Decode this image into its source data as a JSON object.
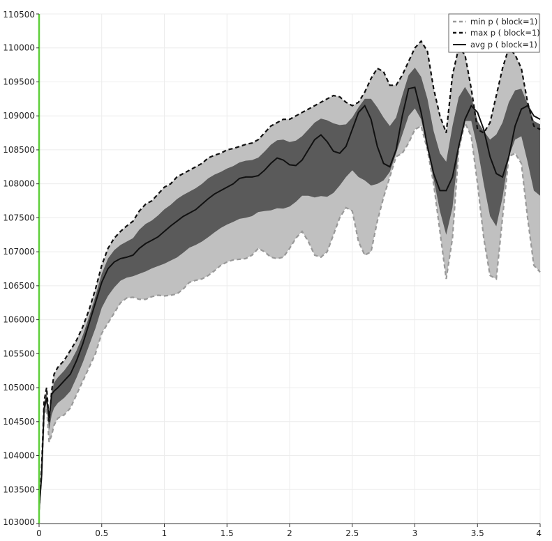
{
  "chart_data": {
    "type": "line",
    "title": "",
    "xlabel": "",
    "ylabel": "",
    "xlim": [
      0,
      4
    ],
    "ylim": [
      103000,
      110500
    ],
    "x_ticks": [
      0,
      0.5,
      1,
      1.5,
      2,
      2.5,
      3,
      3.5,
      4
    ],
    "x_tick_labels": [
      "0",
      "0.5",
      "1",
      "1.5",
      "2",
      "2.5",
      "3",
      "3.5",
      "4"
    ],
    "y_ticks": [
      103000,
      103500,
      104000,
      104500,
      105000,
      105500,
      106000,
      106500,
      107000,
      107500,
      108000,
      108500,
      109000,
      109500,
      110000,
      110500
    ],
    "y_tick_labels": [
      "103000",
      "103500",
      "104000",
      "104500",
      "105000",
      "105500",
      "106000",
      "106500",
      "107000",
      "107500",
      "108000",
      "108500",
      "109000",
      "109500",
      "110000",
      "110500"
    ],
    "grid": true,
    "legend_position": "top-right",
    "colors": {
      "min": "#999999",
      "max": "#111111",
      "avg": "#111111",
      "outer_band": "#c0c0c0",
      "inner_band": "#5a5a5a",
      "axis_marker": "#5fcf3a",
      "grid": "#ececec"
    },
    "x": [
      0,
      0.02,
      0.04,
      0.06,
      0.08,
      0.1,
      0.12,
      0.15,
      0.2,
      0.25,
      0.3,
      0.35,
      0.4,
      0.45,
      0.5,
      0.55,
      0.6,
      0.65,
      0.7,
      0.75,
      0.8,
      0.85,
      0.9,
      0.95,
      1.0,
      1.05,
      1.1,
      1.15,
      1.2,
      1.25,
      1.3,
      1.35,
      1.4,
      1.45,
      1.5,
      1.55,
      1.6,
      1.65,
      1.7,
      1.75,
      1.8,
      1.85,
      1.9,
      1.95,
      2.0,
      2.05,
      2.1,
      2.15,
      2.2,
      2.25,
      2.3,
      2.35,
      2.4,
      2.45,
      2.5,
      2.55,
      2.6,
      2.65,
      2.7,
      2.75,
      2.8,
      2.85,
      2.9,
      2.95,
      3.0,
      3.05,
      3.1,
      3.15,
      3.2,
      3.25,
      3.3,
      3.35,
      3.4,
      3.45,
      3.5,
      3.55,
      3.6,
      3.65,
      3.7,
      3.75,
      3.8,
      3.85,
      3.9,
      3.95,
      4.0
    ],
    "series": [
      {
        "name": "min p ( block=1)",
        "style": "dashed",
        "values": [
          103200,
          103700,
          104600,
          104700,
          104200,
          104300,
          104450,
          104550,
          104600,
          104700,
          104900,
          105100,
          105300,
          105500,
          105800,
          105950,
          106100,
          106250,
          106320,
          106330,
          106300,
          106300,
          106340,
          106360,
          106350,
          106360,
          106380,
          106450,
          106550,
          106580,
          106600,
          106650,
          106720,
          106800,
          106850,
          106880,
          106890,
          106900,
          106950,
          107050,
          107000,
          106920,
          106900,
          106920,
          107050,
          107200,
          107300,
          107150,
          106950,
          106920,
          107000,
          107250,
          107500,
          107650,
          107600,
          107150,
          106950,
          107000,
          107450,
          107800,
          108100,
          108400,
          108450,
          108600,
          108800,
          108850,
          108500,
          108000,
          107300,
          106600,
          107200,
          108500,
          108900,
          108700,
          108000,
          107200,
          106650,
          106600,
          107500,
          108400,
          108450,
          108300,
          107500,
          106800,
          106700
        ]
      },
      {
        "name": "max p ( block=1)",
        "style": "dashed",
        "values": [
          103200,
          103800,
          104800,
          105000,
          104500,
          104950,
          105200,
          105300,
          105400,
          105550,
          105700,
          105900,
          106150,
          106450,
          106800,
          107050,
          107200,
          107300,
          107380,
          107450,
          107600,
          107700,
          107750,
          107850,
          107950,
          108000,
          108100,
          108150,
          108200,
          108250,
          108300,
          108380,
          108420,
          108450,
          108500,
          108520,
          108550,
          108580,
          108600,
          108650,
          108750,
          108850,
          108900,
          108950,
          108950,
          109000,
          109050,
          109100,
          109150,
          109200,
          109250,
          109300,
          109280,
          109200,
          109150,
          109200,
          109350,
          109550,
          109700,
          109650,
          109450,
          109450,
          109600,
          109800,
          110000,
          110100,
          109950,
          109400,
          109000,
          108750,
          109600,
          110000,
          109900,
          109400,
          108800,
          108750,
          108900,
          109300,
          109700,
          110000,
          109900,
          109700,
          109200,
          108850,
          108800
        ]
      },
      {
        "name": "avg p ( block=1)",
        "style": "solid",
        "values": [
          103200,
          103700,
          104700,
          104850,
          104550,
          104900,
          104950,
          105000,
          105100,
          105200,
          105400,
          105650,
          105950,
          106250,
          106550,
          106750,
          106850,
          106900,
          106920,
          106950,
          107050,
          107120,
          107170,
          107220,
          107300,
          107380,
          107450,
          107520,
          107570,
          107620,
          107700,
          107780,
          107850,
          107900,
          107950,
          108000,
          108080,
          108100,
          108100,
          108120,
          108200,
          108300,
          108380,
          108350,
          108280,
          108270,
          108350,
          108500,
          108650,
          108720,
          108620,
          108480,
          108450,
          108550,
          108800,
          109050,
          109150,
          108950,
          108550,
          108300,
          108250,
          108500,
          109000,
          109400,
          109420,
          109050,
          108550,
          108150,
          107900,
          107900,
          108100,
          108550,
          108950,
          109150,
          109050,
          108800,
          108400,
          108150,
          108100,
          108400,
          108850,
          109100,
          109150,
          109000,
          108950
        ]
      }
    ]
  },
  "legend": {
    "items": [
      "min p ( block=1)",
      "max p ( block=1)",
      "avg p ( block=1)"
    ]
  }
}
